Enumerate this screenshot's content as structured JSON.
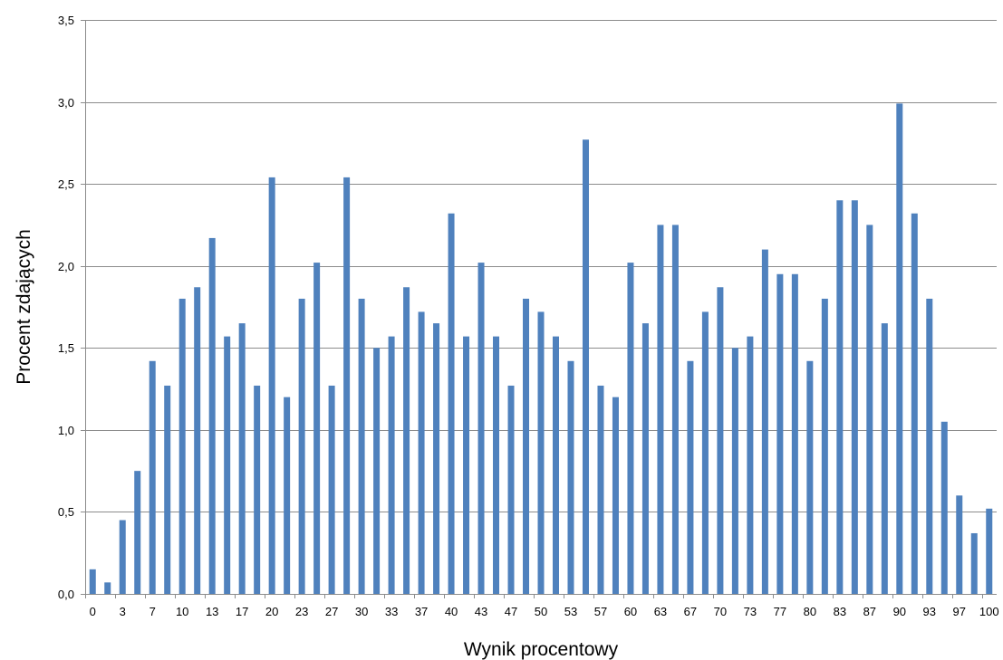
{
  "chart_data": {
    "type": "bar",
    "xlabel": "Wynik procentowy",
    "ylabel": "Procent zdających",
    "ylim": [
      0,
      3.5
    ],
    "y_ticks": [
      "0,0",
      "0,5",
      "1,0",
      "1,5",
      "2,0",
      "2,5",
      "3,0",
      "3,5"
    ],
    "y_tick_values": [
      0,
      0.5,
      1.0,
      1.5,
      2.0,
      2.5,
      3.0,
      3.5
    ],
    "grid": "horizontal",
    "legend": "none",
    "bar_color": "#4f81bd",
    "categories": [
      "0",
      "2",
      "3",
      "5",
      "7",
      "8",
      "10",
      "12",
      "13",
      "15",
      "17",
      "18",
      "20",
      "22",
      "23",
      "25",
      "27",
      "28",
      "30",
      "32",
      "33",
      "35",
      "37",
      "38",
      "40",
      "42",
      "43",
      "45",
      "47",
      "48",
      "50",
      "52",
      "53",
      "55",
      "57",
      "58",
      "60",
      "62",
      "63",
      "65",
      "67",
      "68",
      "70",
      "72",
      "73",
      "75",
      "77",
      "78",
      "80",
      "82",
      "83",
      "85",
      "87",
      "88",
      "90",
      "92",
      "93",
      "95",
      "97",
      "98",
      "100"
    ],
    "x_tick_labels": [
      "0",
      "3",
      "7",
      "10",
      "13",
      "17",
      "20",
      "23",
      "27",
      "30",
      "33",
      "37",
      "40",
      "43",
      "47",
      "50",
      "53",
      "57",
      "60",
      "63",
      "67",
      "70",
      "73",
      "77",
      "80",
      "83",
      "87",
      "90",
      "93",
      "97",
      "100"
    ],
    "values": [
      0.15,
      0.07,
      0.45,
      0.75,
      1.42,
      1.27,
      1.8,
      1.87,
      2.17,
      1.57,
      1.65,
      1.27,
      2.54,
      1.2,
      1.8,
      2.02,
      1.27,
      2.54,
      1.8,
      1.5,
      1.57,
      1.87,
      1.72,
      1.65,
      2.32,
      1.57,
      2.02,
      1.57,
      1.27,
      1.8,
      1.72,
      1.57,
      1.42,
      2.77,
      1.27,
      1.2,
      2.02,
      1.65,
      2.25,
      2.25,
      1.42,
      1.72,
      1.87,
      1.5,
      1.57,
      2.1,
      1.95,
      1.95,
      1.42,
      1.8,
      2.4,
      2.4,
      2.25,
      1.65,
      2.99,
      2.32,
      1.8,
      1.05,
      0.6,
      0.37,
      0.52
    ]
  }
}
